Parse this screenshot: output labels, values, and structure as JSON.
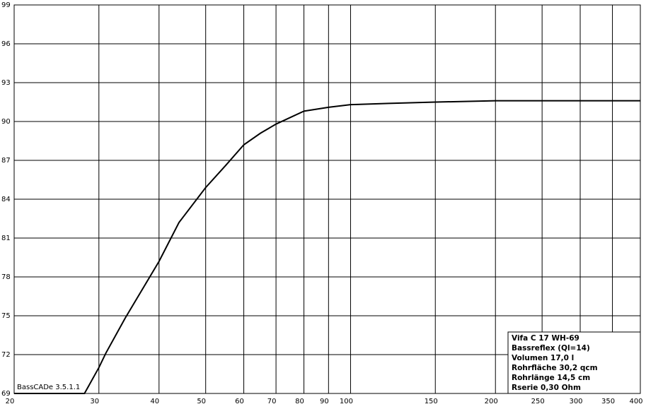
{
  "chart_data": {
    "type": "line",
    "annotation": "BassCADe 3.5.1.1",
    "legend_lines": [
      "Vifa C 17 WH-69",
      "Bassreflex (Ql=14)",
      "Volumen 17,0 l",
      "Rohrfläche 30,2 qcm",
      "Rohrlänge 14,5 cm",
      "Rserie 0,30 Ohm"
    ],
    "x": [
      20,
      25,
      28,
      30,
      31,
      34,
      40,
      44,
      50,
      55,
      60,
      65,
      70,
      80,
      90,
      100,
      120,
      150,
      200,
      300,
      400
    ],
    "series": [
      {
        "color": "#000000",
        "values": [
          69,
          69,
          69,
          71,
          72.1,
          74.8,
          79.2,
          82.2,
          84.9,
          86.6,
          88.2,
          89.1,
          89.8,
          90.8,
          91.1,
          91.3,
          91.4,
          91.5,
          91.6,
          91.6,
          91.6
        ]
      }
    ],
    "xlim": [
      20,
      400
    ],
    "xticks": [
      20,
      30,
      40,
      50,
      60,
      70,
      80,
      90,
      100,
      150,
      200,
      250,
      300,
      350,
      400
    ],
    "xscale": "log",
    "ylim": [
      69,
      99
    ],
    "yticks": [
      69,
      72,
      75,
      78,
      81,
      84,
      87,
      90,
      93,
      96,
      99
    ],
    "grid": true
  }
}
